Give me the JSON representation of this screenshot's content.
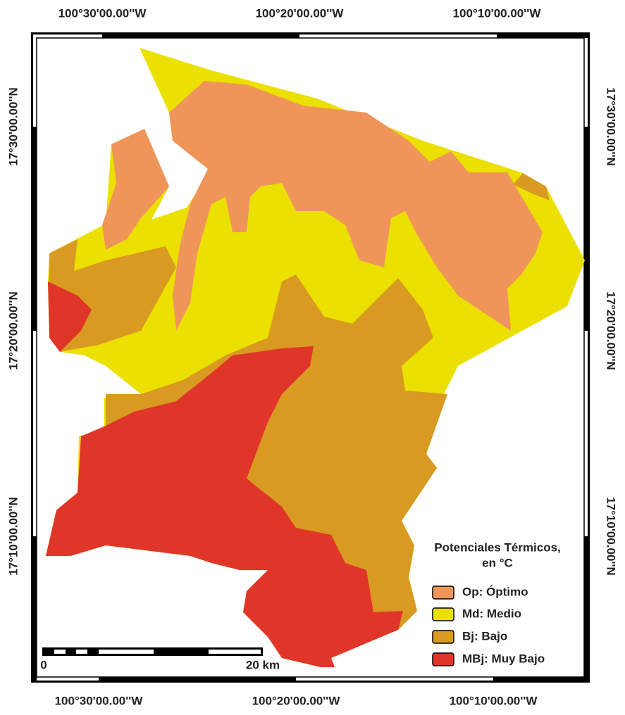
{
  "grid_labels": {
    "top": [
      "100°30'00.00''W",
      "100°20'00.00''W",
      "100°10'00.00''W"
    ],
    "bottom": [
      "100°30'00.00''W",
      "100°20'00.00''W",
      "100°10'00.00''W"
    ],
    "left": [
      "17°30'00.00''N",
      "17°20'00.00''N",
      "17°10'00.00''N"
    ],
    "right": [
      "17°30'00.00''N",
      "17°20'00.00''N",
      "17°10'00.00''N"
    ]
  },
  "legend": {
    "title": [
      "Potenciales Térmicos,",
      "en °C"
    ],
    "items": [
      {
        "label": "Op: Óptimo",
        "color": "#f0955a"
      },
      {
        "label": "Md: Medio",
        "color": "#ebe000"
      },
      {
        "label": "Bj: Bajo",
        "color": "#d99a22"
      },
      {
        "label": "MBj: Muy Bajo",
        "color": "#e0362a"
      }
    ]
  },
  "scale_bar": {
    "start": "0",
    "end": "20 km"
  }
}
